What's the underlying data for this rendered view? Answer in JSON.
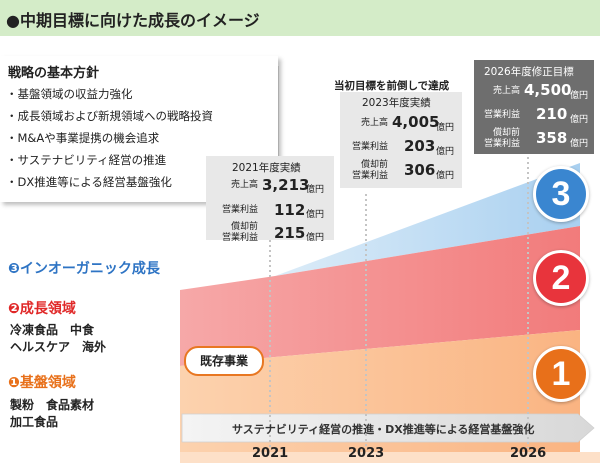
{
  "title": "●中期目標に向けた成長のイメージ",
  "strategy": {
    "title": "戦略の基本方針",
    "items": [
      "・基盤領域の収益力強化",
      "・成長領域および新規領域への戦略投資",
      "・M&Aや事業提携の機会追求",
      "・サステナビリティ経営の推進",
      "・DX推進等による経営基盤強化"
    ]
  },
  "callout_2021": {
    "caption": "2021年度実績",
    "rows": [
      {
        "label": "売上高",
        "value": "3,213",
        "unit": "億円"
      },
      {
        "label": "営業利益",
        "value": "112",
        "unit": "億円"
      },
      {
        "label": "償却前\n営業利益",
        "value": "215",
        "unit": "億円"
      }
    ]
  },
  "callout_2023": {
    "headline": "当初目標を前倒しで達成",
    "caption": "2023年度実績",
    "rows": [
      {
        "label": "売上高",
        "value": "4,005",
        "unit": "億円"
      },
      {
        "label": "営業利益",
        "value": "203",
        "unit": "億円"
      },
      {
        "label": "償却前\n営業利益",
        "value": "306",
        "unit": "億円"
      }
    ]
  },
  "callout_2026": {
    "caption": "2026年度修正目標",
    "rows": [
      {
        "label": "売上高",
        "value": "4,500",
        "unit": "億円"
      },
      {
        "label": "営業利益",
        "value": "210",
        "unit": "億円"
      },
      {
        "label": "償却前\n営業利益",
        "value": "358",
        "unit": "億円"
      }
    ]
  },
  "regions": {
    "inorganic": {
      "head": "❸インオーガニック成長"
    },
    "growth": {
      "head": "❷成長領域",
      "lines": [
        "冷凍食品　中食",
        "ヘルスケア　海外"
      ]
    },
    "base": {
      "head": "❶基盤領域",
      "lines": [
        "製粉　食品素材",
        "加工食品"
      ]
    }
  },
  "existing_business": "既存事業",
  "bottom_arrow": "サステナビリティ経営の推進・DX推進等による経営基盤強化",
  "circles": [
    "3",
    "2",
    "1"
  ],
  "years": [
    "2021",
    "2023",
    "2026"
  ],
  "colors": {
    "title_bg": "#d4ecc8",
    "base": "#fbbf8e",
    "growth": "#f48a8a",
    "inorganic": "#b7d8f2",
    "circle1": "#e8701a",
    "circle2": "#e8343c",
    "circle3": "#3a86d0",
    "label_inorganic": "#2e74c4",
    "label_growth": "#e02828",
    "label_base": "#e8701a"
  }
}
